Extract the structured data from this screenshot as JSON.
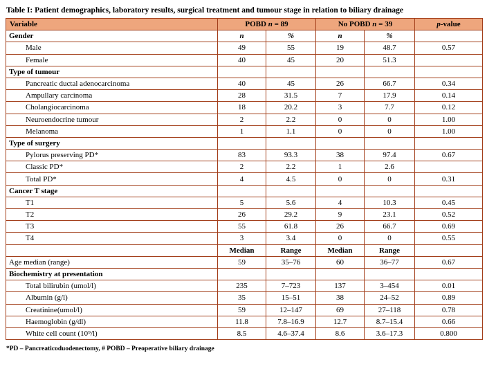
{
  "title": "Table I: Patient demographics, laboratory results, surgical treatment and tumour stage in relation to biliary drainage",
  "footnote": "*PD – Pancreaticoduodenectomy,  # POBD – Preoperative biliary drainage",
  "colors": {
    "border": "#a33f1b",
    "header_bg": "#eea67d"
  },
  "header": {
    "variable": "Variable",
    "group1_name": "POBD",
    "group1_n": "n",
    "group1_eq": "= 89",
    "group2_name": "No POBD",
    "group2_n": "n",
    "group2_eq": "= 39",
    "p_italic": "p",
    "p_rest": "-value"
  },
  "rows": [
    {
      "label": "Gender",
      "bold": true,
      "cells": [
        "n",
        "%",
        "n",
        "%",
        ""
      ],
      "cstyle": "bi"
    },
    {
      "label": "Male",
      "indent": true,
      "cells": [
        "49",
        "55",
        "19",
        "48.7",
        "0.57"
      ]
    },
    {
      "label": "Female",
      "indent": true,
      "cells": [
        "40",
        "45",
        "20",
        "51.3",
        ""
      ]
    },
    {
      "label": "Type of tumour",
      "bold": true,
      "cells": [
        "",
        "",
        "",
        "",
        ""
      ]
    },
    {
      "label": "Pancreatic ductal adenocarcinoma",
      "indent": true,
      "cells": [
        "40",
        "45",
        "26",
        "66.7",
        "0.34"
      ]
    },
    {
      "label": "Ampullary carcinoma",
      "indent": true,
      "cells": [
        "28",
        "31.5",
        "7",
        "17.9",
        "0.14"
      ]
    },
    {
      "label": "Cholangiocarcinoma",
      "indent": true,
      "cells": [
        "18",
        "20.2",
        "3",
        "7.7",
        "0.12"
      ]
    },
    {
      "label": "Neuroendocrine tumour",
      "indent": true,
      "cells": [
        "2",
        "2.2",
        "0",
        "0",
        "1.00"
      ]
    },
    {
      "label": "Melanoma",
      "indent": true,
      "cells": [
        "1",
        "1.1",
        "0",
        "0",
        "1.00"
      ]
    },
    {
      "label": "Type of surgery",
      "bold": true,
      "cells": [
        "",
        "",
        "",
        "",
        ""
      ]
    },
    {
      "label": "Pylorus preserving PD*",
      "indent": true,
      "cells": [
        "83",
        "93.3",
        "38",
        "97.4",
        "0.67"
      ]
    },
    {
      "label": "Classic PD*",
      "indent": true,
      "cells": [
        "2",
        "2.2",
        "1",
        "2.6",
        ""
      ]
    },
    {
      "label": "Total PD*",
      "indent": true,
      "cells": [
        "4",
        "4.5",
        "0",
        "0",
        "0.31"
      ]
    },
    {
      "label": "Cancer T stage",
      "bold": true,
      "cells": [
        "",
        "",
        "",
        "",
        ""
      ]
    },
    {
      "label": "T1",
      "indent": true,
      "cells": [
        "5",
        "5.6",
        "4",
        "10.3",
        "0.45"
      ]
    },
    {
      "label": "T2",
      "indent": true,
      "cells": [
        "26",
        "29.2",
        "9",
        "23.1",
        "0.52"
      ]
    },
    {
      "label": "T3",
      "indent": true,
      "cells": [
        "55",
        "61.8",
        "26",
        "66.7",
        "0.69"
      ]
    },
    {
      "label": "T4",
      "indent": true,
      "cells": [
        "3",
        "3.4",
        "0",
        "0",
        "0.55"
      ]
    },
    {
      "label": "",
      "cells": [
        "Median",
        "Range",
        "Median",
        "Range",
        ""
      ],
      "cstyle": "bold"
    },
    {
      "label": "Age median (range)",
      "cells": [
        "59",
        "35–76",
        "60",
        "36–77",
        "0.67"
      ]
    },
    {
      "label": "Biochemistry at presentation",
      "bold": true,
      "cells": [
        "",
        "",
        "",
        "",
        ""
      ]
    },
    {
      "label": "Total bilirubin (umol/l)",
      "indent": true,
      "cells": [
        "235",
        "7–723",
        "137",
        "3–454",
        "0.01"
      ]
    },
    {
      "label": "Albumin (g/l)",
      "indent": true,
      "cells": [
        "35",
        "15–51",
        "38",
        "24–52",
        "0.89"
      ]
    },
    {
      "label": "Creatinine(umol/l)",
      "indent": true,
      "cells": [
        "59",
        "12–147",
        "69",
        "27–118",
        "0.78"
      ]
    },
    {
      "label": "Haemoglobin (g/dl)",
      "indent": true,
      "cells": [
        "11.8",
        "7.8–16.9",
        "12.7",
        "8.7–15.4",
        "0.66"
      ]
    },
    {
      "label": "White cell count (10⁹/l)",
      "indent": true,
      "cells": [
        "8.5",
        "4.6–37.4",
        "8.6",
        "3.6–17.3",
        "0.800"
      ]
    }
  ]
}
